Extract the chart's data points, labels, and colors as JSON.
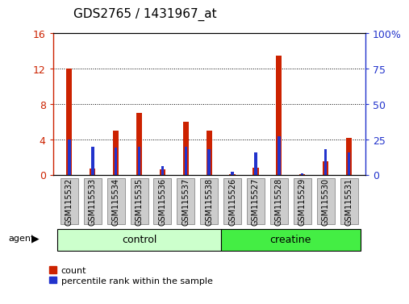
{
  "title": "GDS2765 / 1431967_at",
  "samples": [
    "GSM115532",
    "GSM115533",
    "GSM115534",
    "GSM115535",
    "GSM115536",
    "GSM115537",
    "GSM115538",
    "GSM115526",
    "GSM115527",
    "GSM115528",
    "GSM115529",
    "GSM115530",
    "GSM115531"
  ],
  "count_values": [
    12.0,
    0.7,
    5.0,
    7.0,
    0.6,
    6.0,
    5.0,
    0.05,
    0.8,
    13.5,
    0.05,
    1.5,
    4.2
  ],
  "percentile_values": [
    25,
    20,
    19,
    20,
    6,
    20,
    18,
    2,
    16,
    27,
    1,
    18,
    16
  ],
  "groups": [
    {
      "label": "control",
      "start": 0,
      "end": 6,
      "color": "#ccffcc"
    },
    {
      "label": "creatine",
      "start": 7,
      "end": 12,
      "color": "#44ee44"
    }
  ],
  "group_label": "agent",
  "ylim_left": [
    0,
    16
  ],
  "ylim_right": [
    0,
    100
  ],
  "yticks_left": [
    0,
    4,
    8,
    12,
    16
  ],
  "ytick_labels_left": [
    "0",
    "4",
    "8",
    "12",
    "16"
  ],
  "yticks_right": [
    0,
    25,
    50,
    75,
    100
  ],
  "ytick_labels_right": [
    "0",
    "25",
    "50",
    "75",
    "100%"
  ],
  "bar_color_red": "#cc2200",
  "bar_color_blue": "#2233cc",
  "red_bar_width": 0.25,
  "blue_bar_width": 0.12,
  "bg_color": "#ffffff",
  "tick_box_color": "#cccccc",
  "tick_box_edge_color": "#888888",
  "legend_count_label": "count",
  "legend_pct_label": "percentile rank within the sample",
  "title_fontsize": 11,
  "yaxis_fontsize": 9,
  "tick_label_fontsize": 7,
  "group_fontsize": 9,
  "legend_fontsize": 8
}
